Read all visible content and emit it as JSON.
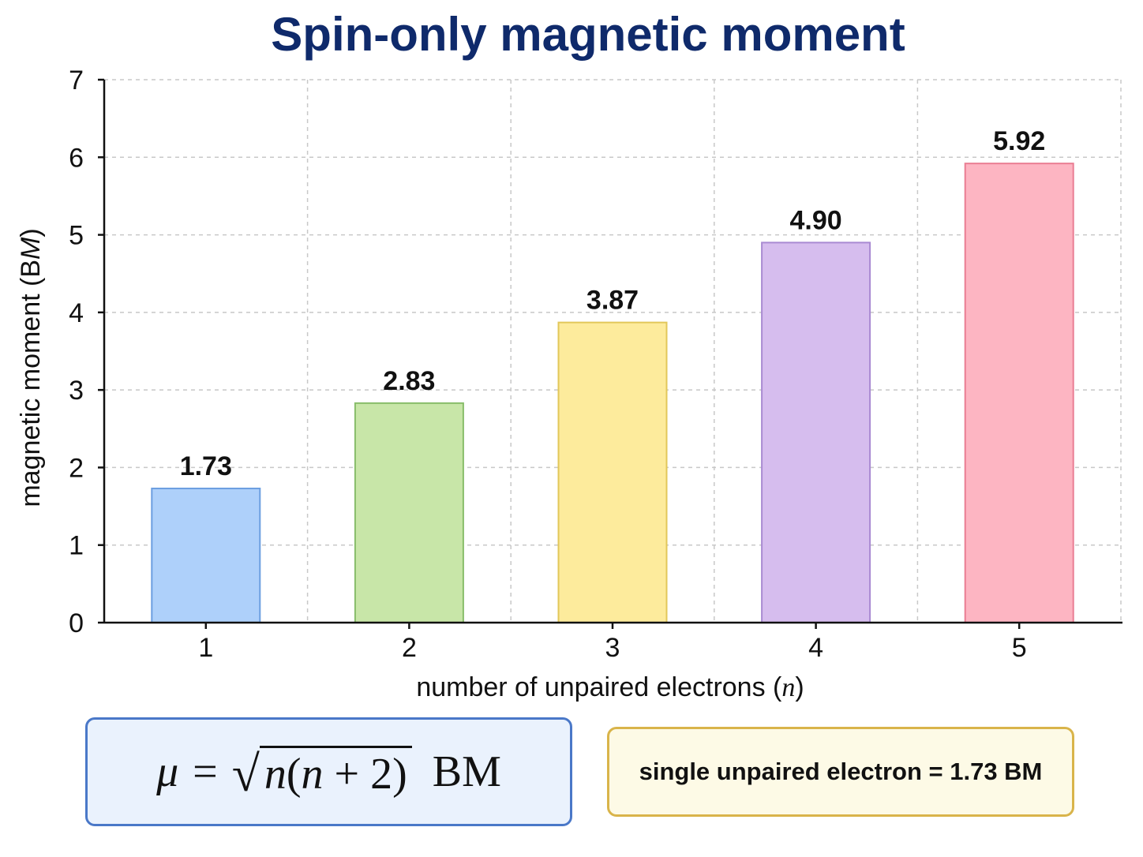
{
  "chart_data": {
    "type": "bar",
    "title": "Spin-only magnetic moment",
    "xlabel_main": "number of unpaired electrons (",
    "xlabel_var": "n",
    "xlabel_close": ")",
    "ylabel_main": "magnetic moment (B",
    "ylabel_italic": "M",
    "ylabel_close": ")",
    "categories": [
      "1",
      "2",
      "3",
      "4",
      "5"
    ],
    "values": [
      1.73,
      2.83,
      3.87,
      4.9,
      5.92
    ],
    "value_labels": [
      "1.73",
      "2.83",
      "3.87",
      "4.90",
      "5.92"
    ],
    "colors": [
      {
        "fill": "#aed0fa",
        "stroke": "#6c9ee0"
      },
      {
        "fill": "#c8e6a8",
        "stroke": "#88bd6a"
      },
      {
        "fill": "#fdeb9c",
        "stroke": "#e2c75a"
      },
      {
        "fill": "#d6bdee",
        "stroke": "#a98ad2"
      },
      {
        "fill": "#fdb5c2",
        "stroke": "#ea7e93"
      }
    ],
    "ylim": [
      0,
      7
    ],
    "yticks": [
      "0",
      "1",
      "2",
      "3",
      "4",
      "5",
      "6",
      "7"
    ],
    "grid": true,
    "legend": "none"
  },
  "formula": {
    "mu": "μ",
    "equals": "=",
    "sqrt_sign": "√",
    "radicand_n1": "n",
    "radicand_open": "(",
    "radicand_n2": "n",
    "radicand_rest": " + 2)",
    "unit": "BM"
  },
  "note": {
    "text": "single unpaired electron = 1.73 BM"
  }
}
